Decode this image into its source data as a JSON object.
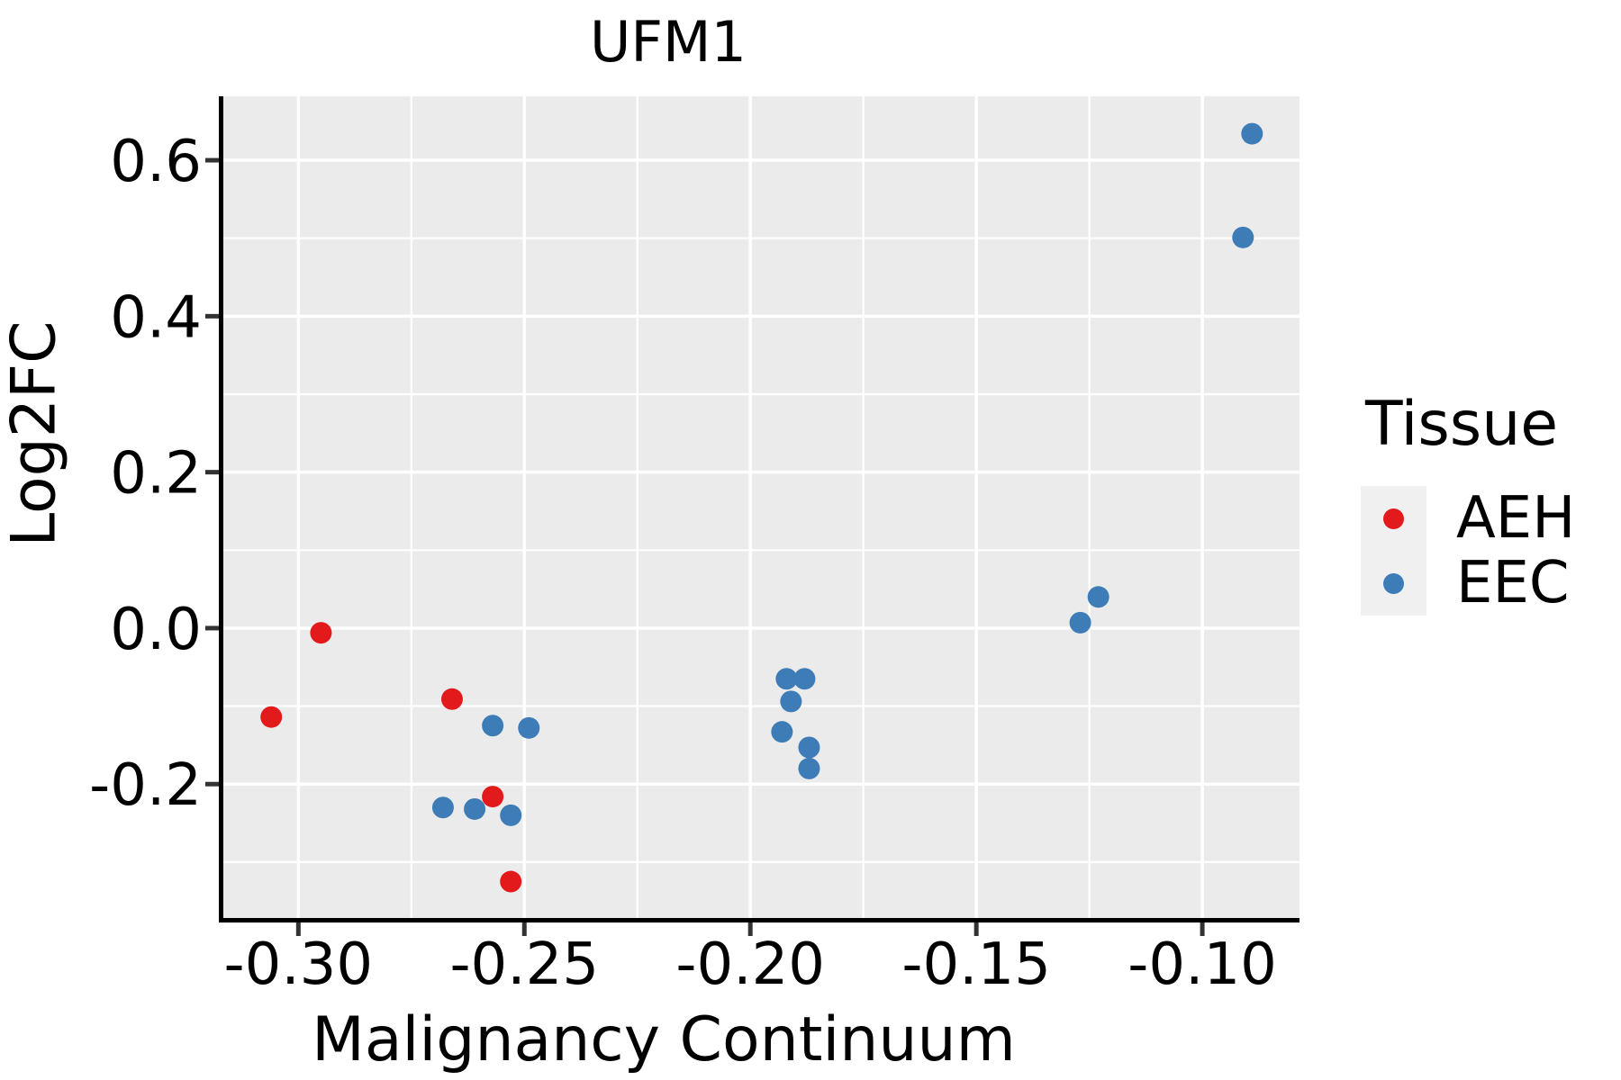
{
  "chart_data": {
    "type": "scatter",
    "title": "UFM1",
    "xlabel": "Malignancy Continuum",
    "ylabel": "Log2FC",
    "panel_bg": "#ebebeb",
    "grid": "major and minor white gridlines on gray panel",
    "xlim": [
      -0.317,
      -0.0785
    ],
    "ylim": [
      -0.374,
      0.682
    ],
    "x_ticks": {
      "values": [
        -0.3,
        -0.25,
        -0.2,
        -0.15,
        -0.1
      ],
      "labels": [
        "-0.30",
        "-0.25",
        "-0.20",
        "-0.15",
        "-0.10"
      ]
    },
    "y_ticks": {
      "values": [
        0.6,
        0.4,
        0.2,
        0.0,
        -0.2
      ],
      "labels": [
        "0.6",
        "0.4",
        "0.2",
        "0.0",
        "-0.2"
      ]
    },
    "x_minor_ticks": [
      -0.275,
      -0.225,
      -0.175,
      -0.125
    ],
    "y_minor_ticks": [
      0.5,
      0.3,
      0.1,
      -0.1,
      -0.3
    ],
    "legend": {
      "title": "Tissue",
      "position": "right",
      "entries": [
        {
          "label": "AEH",
          "color": "#e31a1c"
        },
        {
          "label": "EEC",
          "color": "#3d7cb7"
        }
      ]
    },
    "series": [
      {
        "name": "AEH",
        "color": "#e31a1c",
        "points": [
          [
            -0.306,
            -0.114
          ],
          [
            -0.295,
            -0.006
          ],
          [
            -0.266,
            -0.091
          ],
          [
            -0.257,
            -0.216
          ],
          [
            -0.253,
            -0.325
          ]
        ]
      },
      {
        "name": "EEC",
        "color": "#3d7cb7",
        "points": [
          [
            -0.268,
            -0.23
          ],
          [
            -0.261,
            -0.232
          ],
          [
            -0.257,
            -0.125
          ],
          [
            -0.253,
            -0.24
          ],
          [
            -0.249,
            -0.128
          ],
          [
            -0.193,
            -0.133
          ],
          [
            -0.192,
            -0.065
          ],
          [
            -0.191,
            -0.094
          ],
          [
            -0.188,
            -0.065
          ],
          [
            -0.187,
            -0.153
          ],
          [
            -0.187,
            -0.18
          ],
          [
            -0.127,
            0.007
          ],
          [
            -0.123,
            0.04
          ],
          [
            -0.091,
            0.501
          ],
          [
            -0.089,
            0.634
          ]
        ]
      }
    ]
  }
}
